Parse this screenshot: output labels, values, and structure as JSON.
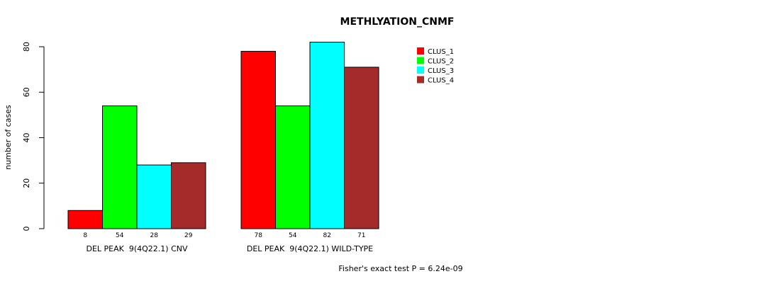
{
  "chart_data": {
    "type": "bar",
    "title": "METHLYATION_CNMF",
    "ylabel": "number of cases",
    "xlabel": "",
    "ylim": [
      0,
      80
    ],
    "yticks": [
      0,
      20,
      40,
      60,
      80
    ],
    "groups": [
      "DEL PEAK  9(4Q22.1) CNV",
      "DEL PEAK  9(4Q22.1) WILD-TYPE"
    ],
    "series": [
      {
        "name": "CLUS_1",
        "color": "#ff0000",
        "values": [
          8,
          78
        ]
      },
      {
        "name": "CLUS_2",
        "color": "#00ff00",
        "values": [
          54,
          54
        ]
      },
      {
        "name": "CLUS_3",
        "color": "#00ffff",
        "values": [
          28,
          82
        ]
      },
      {
        "name": "CLUS_4",
        "color": "#a52a2a",
        "values": [
          29,
          71
        ]
      }
    ],
    "legend_position": "top-right",
    "footer": "Fisher's exact test P = 6.24e-09"
  }
}
